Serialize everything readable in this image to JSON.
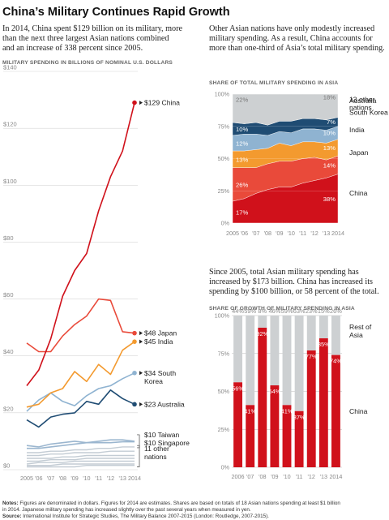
{
  "title": "China’s Military Continues Rapid Growth",
  "intro_left": [
    "In 2014, China spent $129 billion on its military, more",
    "than the next three largest Asian nations combined",
    "and an increase of 338 percent since 2005."
  ],
  "intro_right": [
    "Other Asian nations have only modestly increased",
    "military spending. As a result, China accounts for",
    "more than one-third of Asia’s total military spending."
  ],
  "intro_bottom_right": [
    "Since 2005, total Asian military spending has",
    "increased by $173 billion. China has increased its",
    "spending by $100 billion, or 58 percent of the total."
  ],
  "notes": {
    "label": "Notes:",
    "text1": " Figures are denominated in dollars. Figures for 2014 are estimates. Shares are based on totals of 18 Asian nations spending at least $1 billion",
    "text2": "in 2014. Japanese military spending has increased slightly over the past several years when measured in yen.",
    "source_label": "Source:",
    "source_text": " International Institute for Strategic Studies, The Military Balance 2007-2015 (London: Routledge, 2007-2015)."
  },
  "colors": {
    "china": "#d0111b",
    "japan": "#e94a3a",
    "india": "#f39a2f",
    "south_korea": "#8fb3d1",
    "australia": "#1f4c73",
    "other": "#c3ccd4",
    "grey_area": "#cdd0d2"
  },
  "chart_data": [
    {
      "type": "line",
      "ylabel": "MILITARY SPENDING IN BILLIONS OF NOMINAL U.S. DOLLARS",
      "x": [
        2005,
        2006,
        2007,
        2008,
        2009,
        2010,
        2011,
        2012,
        2013,
        2014
      ],
      "x_tick_labels": [
        "2005",
        "'06",
        "'07",
        "'08",
        "'09",
        "'10",
        "'11",
        "'12",
        "'13",
        "2014"
      ],
      "y_ticks": [
        0,
        20,
        40,
        60,
        80,
        100,
        120,
        140
      ],
      "y_tick_labels": [
        "$0",
        "$20",
        "$40",
        "$60",
        "$80",
        "$100",
        "$120",
        "$140"
      ],
      "ylim": [
        0,
        140
      ],
      "series": [
        {
          "key": "china",
          "values": [
            29.5,
            35,
            46,
            61,
            70,
            76,
            91,
            103,
            112,
            129
          ],
          "end_label": "$129 China"
        },
        {
          "key": "japan",
          "values": [
            44.5,
            41.5,
            41.5,
            47,
            51,
            54,
            60,
            59.5,
            48.5,
            48
          ],
          "end_label": "$48 Japan"
        },
        {
          "key": "india",
          "values": [
            22,
            23,
            27,
            28.5,
            34.5,
            31,
            37,
            33.5,
            42,
            45
          ],
          "end_label": "$45 India"
        },
        {
          "key": "south_korea",
          "values": [
            20.5,
            24.5,
            27,
            24,
            22.5,
            26,
            28.5,
            29.5,
            32,
            34
          ],
          "end_label": "$34 South Korea"
        },
        {
          "key": "australia",
          "values": [
            17.5,
            15,
            18.5,
            19.5,
            20,
            24,
            23,
            28,
            25,
            23
          ],
          "end_label": "$23 Australia"
        },
        {
          "key": "taiwan",
          "values": [
            8.5,
            8,
            9,
            9.5,
            10,
            9.5,
            10,
            10.5,
            10.5,
            10
          ],
          "end_label": "$10 Taiwan"
        },
        {
          "key": "singapore",
          "values": [
            7.5,
            7.5,
            8,
            8.5,
            9,
            9.5,
            9.5,
            9.5,
            9.8,
            9.8
          ],
          "end_label": "$10 Singapore"
        },
        {
          "key": "other1",
          "values": [
            6,
            6,
            6.5,
            6.5,
            7,
            7,
            7.5,
            7.5,
            8,
            8
          ]
        },
        {
          "key": "other2",
          "values": [
            5,
            5,
            5.5,
            5.5,
            6,
            6,
            6,
            6.5,
            6.5,
            6.5
          ]
        },
        {
          "key": "other3",
          "values": [
            4,
            4,
            4,
            4.5,
            4.5,
            5,
            5,
            5,
            5,
            5
          ]
        },
        {
          "key": "other4",
          "values": [
            3,
            3,
            3.5,
            3.5,
            3.5,
            4,
            4,
            4,
            4,
            4
          ]
        },
        {
          "key": "other5",
          "values": [
            2,
            2.5,
            2.5,
            2.5,
            3,
            3,
            3,
            3,
            3,
            3
          ]
        },
        {
          "key": "other6",
          "values": [
            1.5,
            1.5,
            1.5,
            2,
            2,
            2,
            2,
            2,
            2,
            2
          ]
        },
        {
          "key": "other7",
          "values": [
            1,
            1,
            1,
            1,
            1,
            1.5,
            1.5,
            1.5,
            1.5,
            1.5
          ]
        }
      ],
      "other_label": "11 other nations"
    },
    {
      "type": "area",
      "title": "SHARE OF TOTAL MILITARY SPENDING IN ASIA",
      "x": [
        2005,
        2006,
        2007,
        2008,
        2009,
        2010,
        2011,
        2012,
        2013,
        2014
      ],
      "x_tick_labels": [
        "2005",
        "'06",
        "'07",
        "'08",
        "'09",
        "'10",
        "'11",
        "'12",
        "'13",
        "2014"
      ],
      "y_ticks": [
        0,
        25,
        50,
        75,
        100
      ],
      "y_tick_labels": [
        "0%",
        "25%",
        "50%",
        "75%",
        "100%"
      ],
      "ylim": [
        0,
        100
      ],
      "stack_order": [
        "china",
        "japan",
        "india",
        "south_korea",
        "australia",
        "other"
      ],
      "series": [
        {
          "key": "china",
          "name": "China",
          "values": [
            17,
            19,
            23,
            26,
            28,
            28,
            31,
            33,
            35,
            38
          ]
        },
        {
          "key": "japan",
          "name": "Japan",
          "values": [
            26,
            24,
            20,
            20,
            20,
            20,
            19,
            18,
            14,
            14
          ]
        },
        {
          "key": "india",
          "name": "India",
          "values": [
            13,
            13,
            14,
            12,
            14,
            12,
            13,
            12,
            13,
            13
          ]
        },
        {
          "key": "south_korea",
          "name": "South Korea",
          "values": [
            12,
            13,
            12,
            10,
            9,
            10,
            10,
            10,
            10,
            10
          ]
        },
        {
          "key": "australia",
          "name": "Australia",
          "values": [
            10,
            8,
            9,
            8,
            8,
            9,
            8,
            8,
            8,
            7
          ]
        },
        {
          "key": "other",
          "name": "13 other nations",
          "values": [
            22,
            23,
            22,
            24,
            21,
            21,
            19,
            19,
            20,
            18
          ]
        }
      ],
      "start_labels": [
        "17%",
        "26%",
        "13%",
        "12%",
        "10%",
        "22%"
      ],
      "end_labels": [
        "38%",
        "14%",
        "13%",
        "10%",
        "7%",
        "18%"
      ]
    },
    {
      "type": "bar",
      "title": "SHARE OF GROWTH OF MILITARY SPENDING IN ASIA",
      "categories": [
        "2006",
        "'07",
        "'08",
        "'09",
        "'10",
        "'11",
        "'12",
        "'13",
        "2014"
      ],
      "y_ticks": [
        0,
        25,
        50,
        75,
        100
      ],
      "y_tick_labels": [
        "0%",
        "25%",
        "50%",
        "75%",
        "100%"
      ],
      "ylim": [
        0,
        100
      ],
      "series": [
        {
          "key": "china",
          "name": "China",
          "values": [
            56,
            41,
            92,
            54,
            41,
            37,
            77,
            85,
            74
          ],
          "labels": [
            "56%",
            "41%",
            "92%",
            "54%",
            "41%",
            "37%",
            "77%",
            "85%",
            "74%"
          ]
        },
        {
          "key": "rest",
          "name": "Rest of Asia",
          "values": [
            44,
            59,
            8,
            46,
            59,
            63,
            23,
            15,
            26
          ],
          "labels": [
            "44%",
            "59%",
            "8%",
            "46%",
            "59%",
            "63%",
            "23%",
            "15%",
            "26%"
          ]
        }
      ]
    }
  ]
}
